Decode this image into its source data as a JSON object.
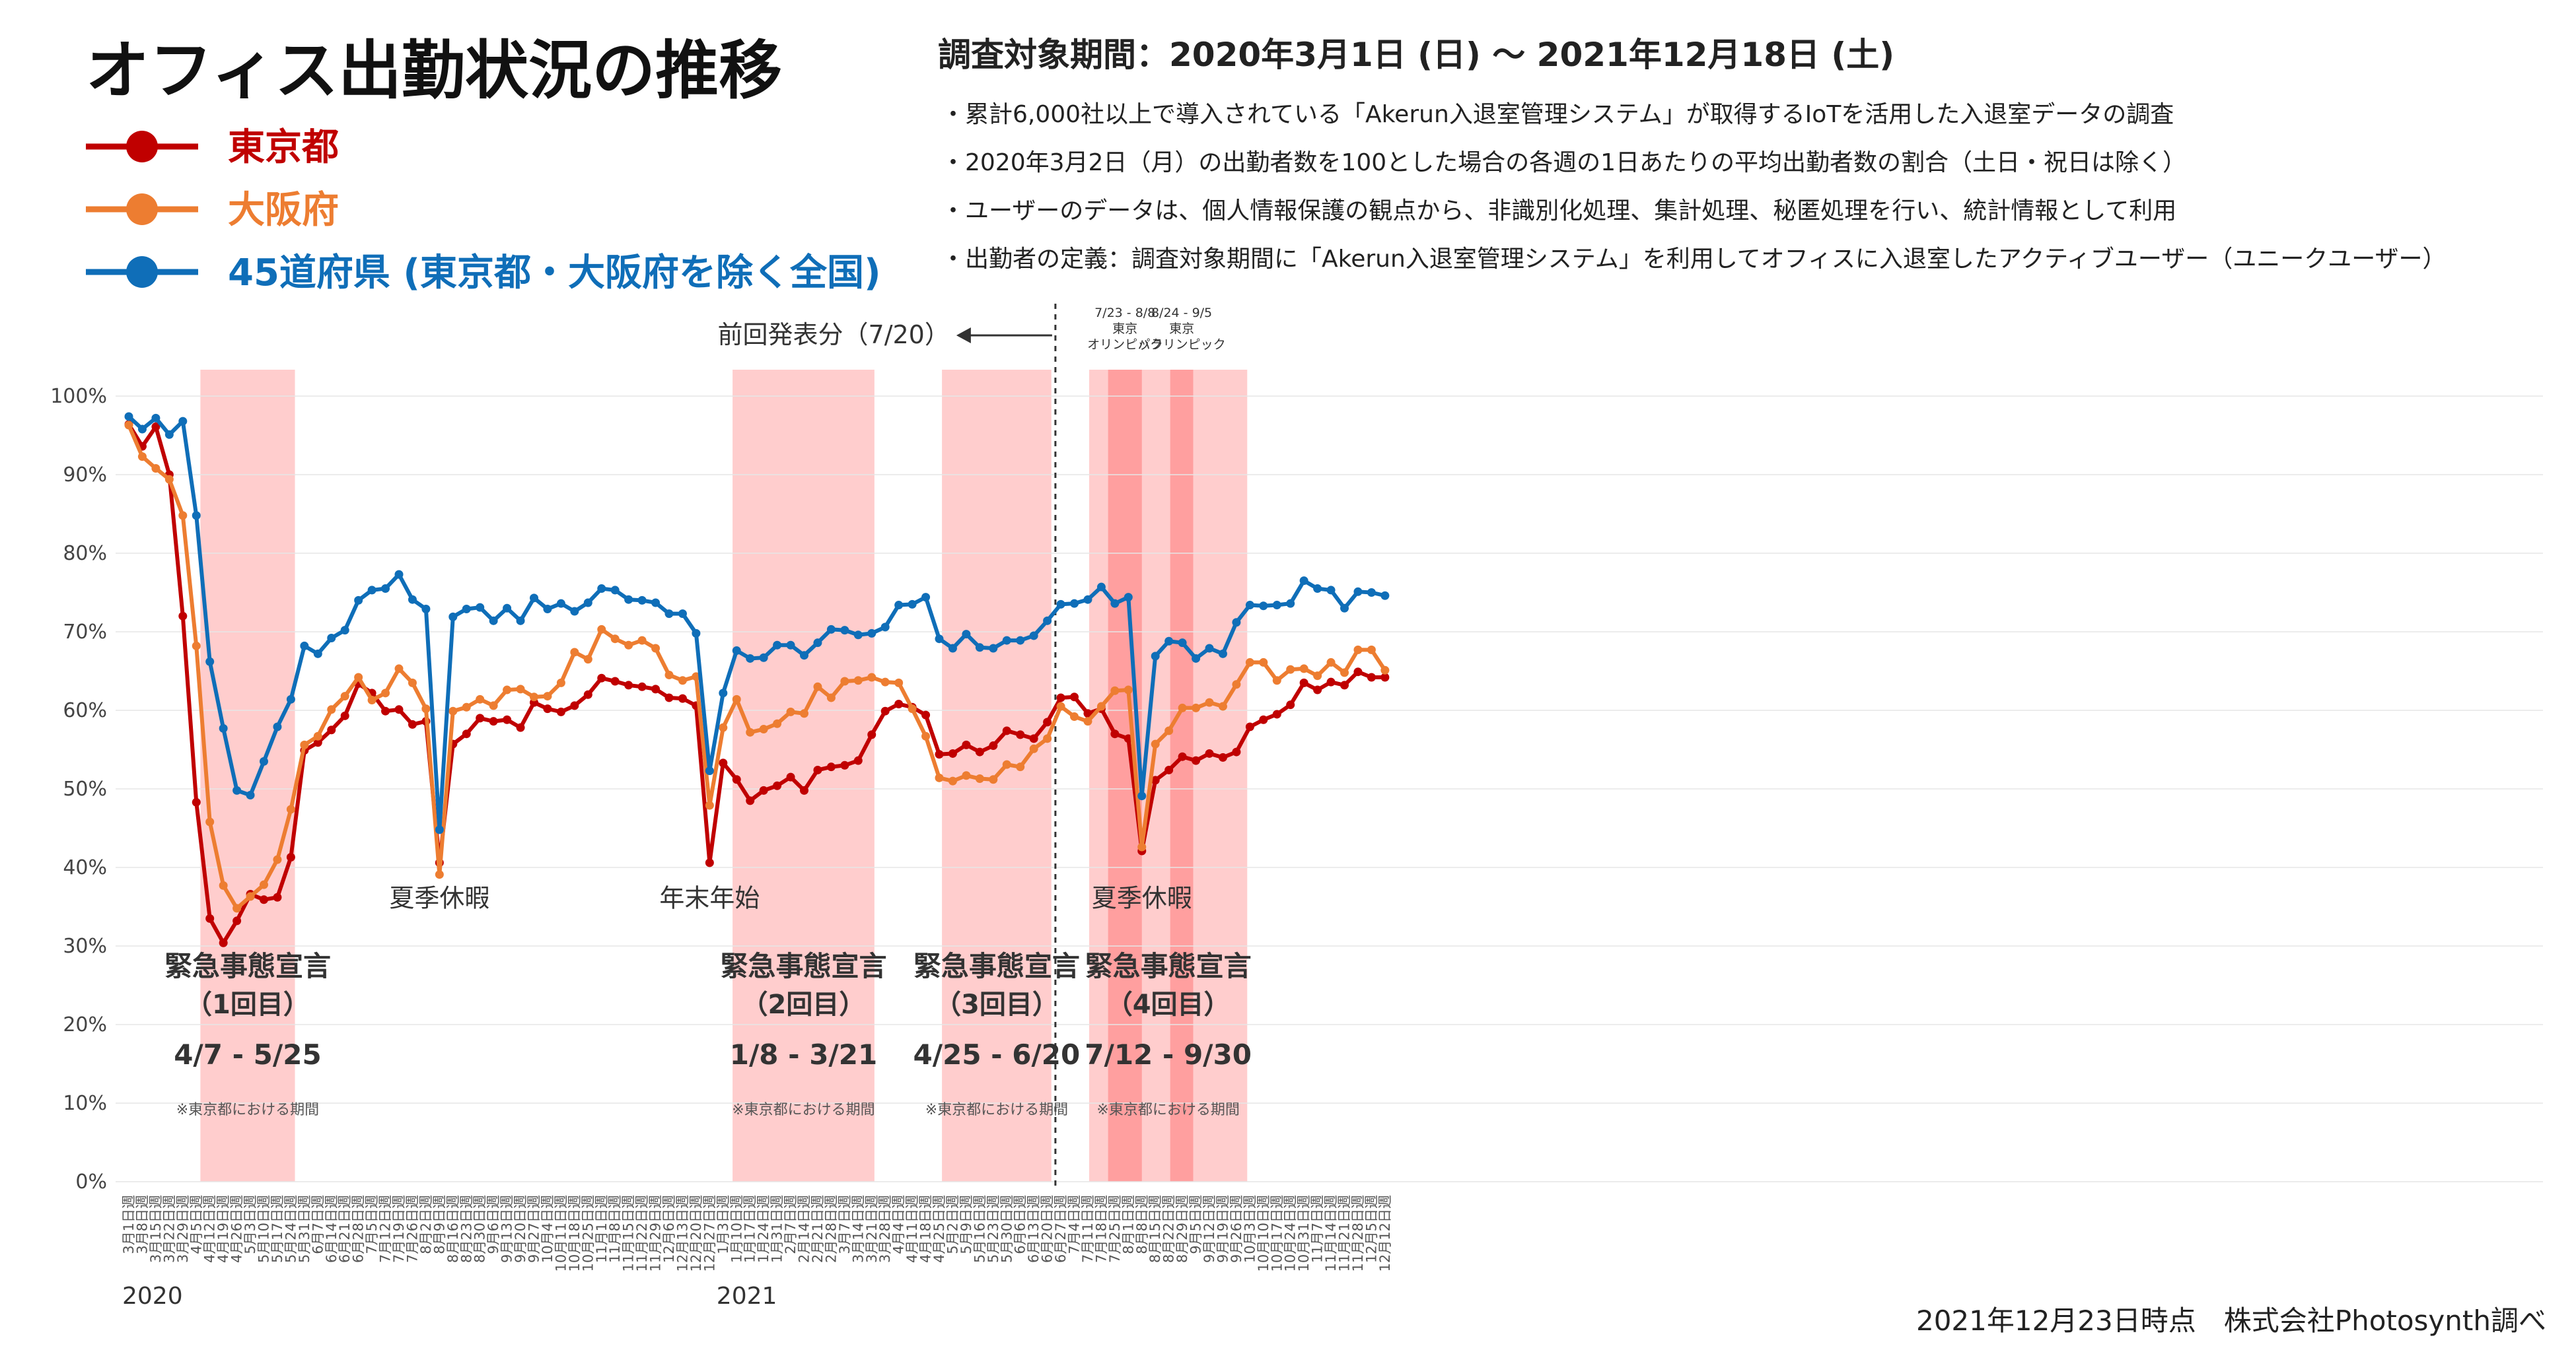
{
  "title": "オフィス出勤状況の推移",
  "period": "調査対象期間：2020年3月1日 (日) 〜 2021年12月18日 (土)",
  "notes": [
    "・累計6,000社以上で導入されている「Akerun入退室管理システム」が取得するIoTを活用した入退室データの調査",
    "・2020年3月2日（月）の出勤者数を100とした場合の各週の1日あたりの平均出勤者数の割合（土日・祝日は除く）",
    "・ユーザーのデータは、個人情報保護の観点から、非識別化処理、集計処理、秘匿処理を行い、統計情報として利用",
    "・出勤者の定義：調査対象期間に「Akerun入退室管理システム」を利用してオフィスに入退室したアクティブユーザー（ユニークユーザー）"
  ],
  "footer": "2021年12月23日時点　株式会社Photosynth調べ",
  "chart_data": {
    "type": "line",
    "title": "オフィス出勤状況の推移",
    "ylim": [
      0,
      100
    ],
    "yticks": [
      "0%",
      "10%",
      "20%",
      "30%",
      "40%",
      "50%",
      "60%",
      "70%",
      "80%",
      "90%",
      "100%"
    ],
    "years": [
      {
        "label": "2020",
        "index": 0
      },
      {
        "label": "2021",
        "index": 44
      }
    ],
    "x": [
      "3月1日週",
      "3月8日週",
      "3月15日週",
      "3月22日週",
      "3月29日週",
      "4月5日週",
      "4月12日週",
      "4月19日週",
      "4月26日週",
      "5月3日週",
      "5月10日週",
      "5月17日週",
      "5月24日週",
      "5月31日週",
      "6月7日週",
      "6月14日週",
      "6月21日週",
      "6月28日週",
      "7月5日週",
      "7月12日週",
      "7月19日週",
      "7月26日週",
      "8月2日週",
      "8月9日週",
      "8月16日週",
      "8月23日週",
      "8月30日週",
      "9月6日週",
      "9月13日週",
      "9月20日週",
      "9月27日週",
      "10月4日週",
      "10月11日週",
      "10月18日週",
      "10月25日週",
      "11月1日週",
      "11月8日週",
      "11月15日週",
      "11月22日週",
      "11月29日週",
      "12月6日週",
      "12月13日週",
      "12月20日週",
      "12月27日週",
      "1月3日週",
      "1月10日週",
      "1月17日週",
      "1月24日週",
      "1月31日週",
      "2月7日週",
      "2月14日週",
      "2月21日週",
      "2月28日週",
      "3月7日週",
      "3月14日週",
      "3月21日週",
      "3月28日週",
      "4月4日週",
      "4月11日週",
      "4月18日週",
      "4月25日週",
      "5月2日週",
      "5月9日週",
      "5月16日週",
      "5月23日週",
      "5月30日週",
      "6月6日週",
      "6月13日週",
      "6月20日週",
      "6月27日週",
      "7月4日週",
      "7月11日週",
      "7月18日週",
      "7月25日週",
      "8月1日週",
      "8月8日週",
      "8月15日週",
      "8月22日週",
      "8月29日週",
      "9月5日週",
      "9月12日週",
      "9月19日週",
      "9月26日週",
      "10月3日週",
      "10月10日週",
      "10月17日週",
      "10月24日週",
      "10月31日週",
      "11月7日週",
      "11月14日週",
      "11月21日週",
      "11月28日週",
      "12月5日週",
      "12月12日週"
    ],
    "series": [
      {
        "name": "東京都",
        "color": "#C00000",
        "values": [
          96.4,
          93.6,
          96.1,
          90.0,
          72.0,
          48.3,
          33.5,
          30.4,
          33.2,
          36.6,
          35.9,
          36.2,
          41.3,
          54.9,
          55.9,
          57.5,
          59.3,
          63.4,
          62.2,
          59.9,
          60.1,
          58.2,
          58.6,
          40.6,
          55.7,
          57.0,
          59.0,
          58.6,
          58.8,
          57.8,
          61.0,
          60.2,
          59.8,
          60.6,
          62.0,
          64.1,
          63.7,
          63.2,
          63.0,
          62.7,
          61.6,
          61.5,
          60.6,
          40.6,
          53.3,
          51.2,
          48.5,
          49.8,
          50.4,
          51.5,
          49.8,
          52.4,
          52.8,
          53.0,
          53.6,
          56.9,
          59.9,
          60.8,
          60.4,
          59.4,
          54.4,
          54.5,
          55.6,
          54.7,
          55.5,
          57.4,
          56.9,
          56.4,
          58.5,
          61.6,
          61.7,
          59.6,
          60.2,
          57.0,
          56.4,
          42.1,
          51.1,
          52.4,
          54.1,
          53.6,
          54.5,
          54.0,
          54.7,
          57.9,
          58.8,
          59.5,
          60.7,
          63.5,
          62.6,
          63.6,
          63.2,
          64.9,
          64.2,
          64.2
        ]
      },
      {
        "name": "大阪府",
        "color": "#ED7D31",
        "values": [
          96.3,
          92.3,
          90.8,
          89.4,
          84.8,
          68.2,
          45.8,
          37.7,
          34.8,
          36.3,
          37.8,
          41.0,
          47.4,
          55.6,
          56.7,
          60.1,
          61.8,
          64.2,
          61.3,
          62.2,
          65.3,
          63.5,
          60.2,
          39.1,
          59.9,
          60.4,
          61.4,
          60.6,
          62.6,
          62.7,
          61.7,
          61.8,
          63.5,
          67.4,
          66.5,
          70.3,
          69.1,
          68.3,
          68.9,
          67.9,
          64.5,
          63.8,
          64.3,
          47.9,
          57.8,
          61.4,
          57.2,
          57.6,
          58.3,
          59.8,
          59.6,
          63.0,
          61.6,
          63.7,
          63.8,
          64.2,
          63.6,
          63.5,
          60.2,
          56.7,
          51.4,
          51.0,
          51.7,
          51.3,
          51.2,
          53.1,
          52.8,
          55.1,
          56.4,
          60.5,
          59.2,
          58.6,
          60.5,
          62.5,
          62.6,
          42.6,
          55.7,
          57.4,
          60.3,
          60.3,
          61.0,
          60.5,
          63.3,
          66.1,
          66.1,
          63.8,
          65.2,
          65.3,
          64.4,
          66.1,
          64.8,
          67.7,
          67.7,
          65.1
        ]
      },
      {
        "name": "45道府県 (東京都・大阪府を除く全国)",
        "color": "#0F6EB8",
        "values": [
          97.4,
          95.8,
          97.2,
          95.1,
          96.8,
          84.8,
          66.2,
          57.7,
          49.8,
          49.2,
          53.5,
          57.9,
          61.4,
          68.2,
          67.2,
          69.2,
          70.2,
          74.0,
          75.3,
          75.5,
          77.3,
          74.1,
          72.9,
          44.8,
          71.9,
          72.9,
          73.1,
          71.4,
          73.0,
          71.4,
          74.3,
          72.9,
          73.6,
          72.6,
          73.7,
          75.5,
          75.3,
          74.1,
          74.0,
          73.7,
          72.3,
          72.3,
          69.8,
          52.3,
          62.2,
          67.6,
          66.6,
          66.7,
          68.3,
          68.3,
          67.0,
          68.6,
          70.3,
          70.2,
          69.6,
          69.8,
          70.6,
          73.4,
          73.5,
          74.4,
          69.1,
          67.9,
          69.7,
          68.0,
          67.9,
          68.9,
          68.9,
          69.5,
          71.4,
          73.5,
          73.6,
          74.1,
          75.7,
          73.6,
          74.4,
          49.1,
          66.9,
          68.8,
          68.6,
          66.6,
          67.9,
          67.2,
          71.2,
          73.4,
          73.3,
          73.4,
          73.6,
          76.5,
          75.5,
          75.3,
          73.0,
          75.1,
          75.0,
          74.6
        ]
      }
    ],
    "bands": [
      {
        "title": "緊急事態宣言",
        "sub": "（1回目）",
        "range": "4/7 - 5/25",
        "note": "※東京都における期間",
        "start": 5.3,
        "end": 12.3
      },
      {
        "title": "緊急事態宣言",
        "sub": "（2回目）",
        "range": "1/8 - 3/21",
        "note": "※東京都における期間",
        "start": 44.7,
        "end": 55.2
      },
      {
        "title": "緊急事態宣言",
        "sub": "（3回目）",
        "range": "4/25 - 6/20",
        "note": "※東京都における期間",
        "start": 60.2,
        "end": 68.3
      },
      {
        "title": "緊急事態宣言",
        "sub": "（4回目）",
        "range": "7/12 - 9/30",
        "note": "※東京都における期間",
        "start": 71.1,
        "end": 82.8
      }
    ],
    "event_bands": [
      {
        "label": [
          "7/23 - 8/8",
          "東京",
          "オリンピック"
        ],
        "start": 72.5,
        "end": 75.0
      },
      {
        "label": [
          "8/24 - 9/5",
          "東京",
          "パラリンピック"
        ],
        "start": 77.1,
        "end": 78.8
      }
    ],
    "annotations": [
      {
        "text": "夏季休暇",
        "index": 23,
        "value": 36
      },
      {
        "text": "年末年始",
        "index": 43,
        "value": 36
      },
      {
        "text": "夏季休暇",
        "index": 75,
        "value": 36
      }
    ],
    "previous_release": {
      "text": "前回発表分（7/20）",
      "index": 68.6
    }
  }
}
